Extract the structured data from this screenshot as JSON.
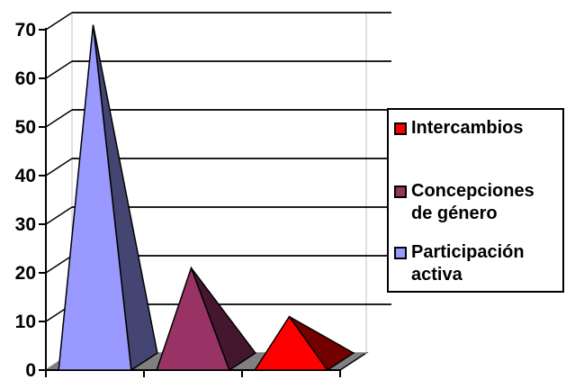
{
  "chart_data": {
    "type": "bar",
    "bar_shape": "pyramid-3d",
    "categories": [
      "",
      "",
      ""
    ],
    "series": [
      {
        "name": "Participación activa",
        "values": [
          71,
          null,
          null
        ],
        "color": "#9999ff"
      },
      {
        "name": "Concepciones de género",
        "values": [
          null,
          21,
          null
        ],
        "color": "#993366"
      },
      {
        "name": "Intercambios",
        "values": [
          null,
          null,
          11
        ],
        "color": "#ff0000"
      }
    ],
    "title": "",
    "xlabel": "",
    "ylabel": "",
    "ylim": [
      0,
      70
    ],
    "yticks": [
      "0",
      "10",
      "20",
      "30",
      "40",
      "50",
      "60",
      "70"
    ],
    "grid": true,
    "legend_position": "right"
  },
  "legend": {
    "items": [
      {
        "label": "Intercambios",
        "color": "#ff0000"
      },
      {
        "label": "Concepciones\nde género",
        "color": "#993366"
      },
      {
        "label": "Participación\nactiva",
        "color": "#9999ff"
      }
    ]
  }
}
